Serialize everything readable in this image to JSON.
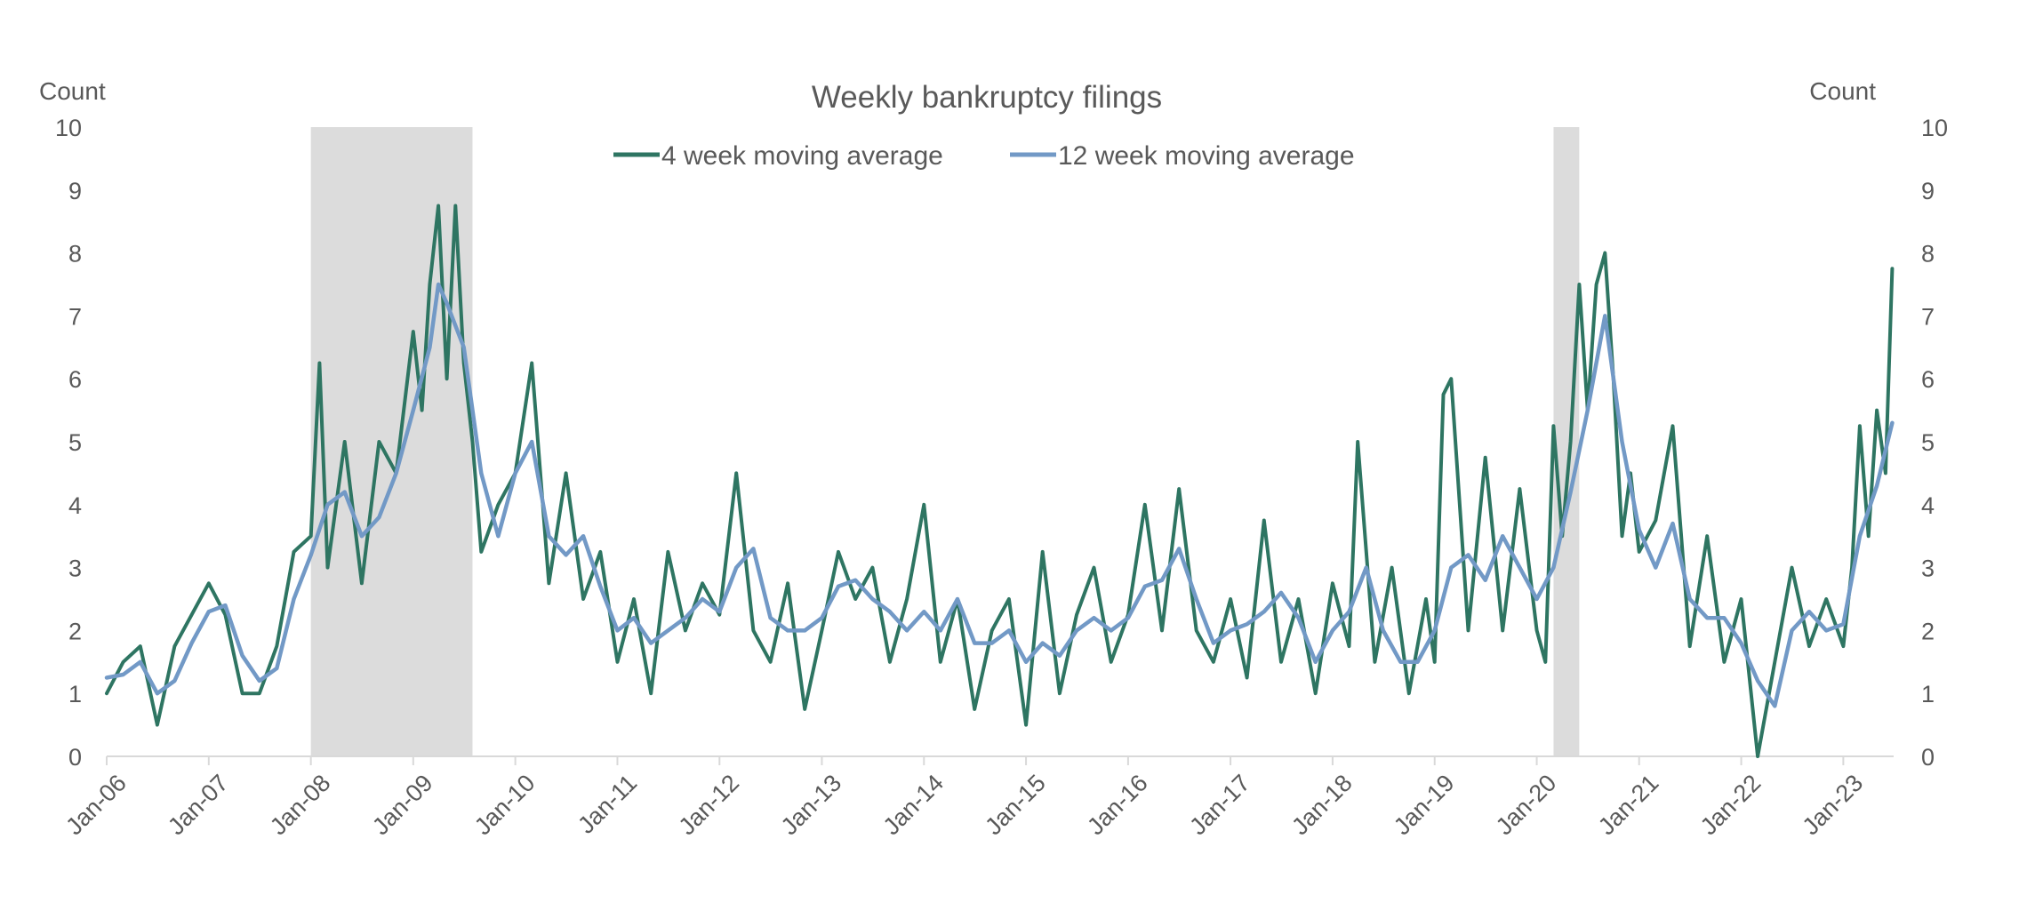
{
  "chart_data": {
    "type": "line",
    "title": "Weekly bankruptcy filings",
    "y_left_label": "Count",
    "y_right_label": "Count",
    "ylim": [
      0,
      10
    ],
    "yticks": [
      "0",
      "1",
      "2",
      "3",
      "4",
      "5",
      "6",
      "7",
      "8",
      "9",
      "10"
    ],
    "x_range": [
      "2006-01-01",
      "2023-06-30"
    ],
    "xticks": [
      {
        "date": "2006-01-01",
        "label": "Jan-06"
      },
      {
        "date": "2007-01-01",
        "label": "Jan-07"
      },
      {
        "date": "2008-01-01",
        "label": "Jan-08"
      },
      {
        "date": "2009-01-01",
        "label": "Jan-09"
      },
      {
        "date": "2010-01-01",
        "label": "Jan-10"
      },
      {
        "date": "2011-01-01",
        "label": "Jan-11"
      },
      {
        "date": "2012-01-01",
        "label": "Jan-12"
      },
      {
        "date": "2013-01-01",
        "label": "Jan-13"
      },
      {
        "date": "2014-01-01",
        "label": "Jan-14"
      },
      {
        "date": "2015-01-01",
        "label": "Jan-15"
      },
      {
        "date": "2016-01-01",
        "label": "Jan-16"
      },
      {
        "date": "2017-01-01",
        "label": "Jan-17"
      },
      {
        "date": "2018-01-01",
        "label": "Jan-18"
      },
      {
        "date": "2019-01-01",
        "label": "Jan-19"
      },
      {
        "date": "2020-01-01",
        "label": "Jan-20"
      },
      {
        "date": "2021-01-01",
        "label": "Jan-21"
      },
      {
        "date": "2022-01-01",
        "label": "Jan-22"
      },
      {
        "date": "2023-01-01",
        "label": "Jan-23"
      }
    ],
    "shaded_periods": [
      {
        "start": "2008-01-01",
        "end": "2009-08-01",
        "color": "#dcdcdc"
      },
      {
        "start": "2020-03-01",
        "end": "2020-06-01",
        "color": "#dcdcdc"
      }
    ],
    "grid": false,
    "legend_position": "top-center",
    "series": [
      {
        "name": "4 week moving average",
        "color": "#2e7562",
        "points": [
          [
            "2006-01-01",
            1.0
          ],
          [
            "2006-03-01",
            1.5
          ],
          [
            "2006-05-01",
            1.75
          ],
          [
            "2006-07-01",
            0.5
          ],
          [
            "2006-09-01",
            1.75
          ],
          [
            "2006-11-01",
            2.25
          ],
          [
            "2007-01-01",
            2.75
          ],
          [
            "2007-03-01",
            2.25
          ],
          [
            "2007-05-01",
            1.0
          ],
          [
            "2007-07-01",
            1.0
          ],
          [
            "2007-09-01",
            1.75
          ],
          [
            "2007-11-01",
            3.25
          ],
          [
            "2008-01-01",
            3.5
          ],
          [
            "2008-02-01",
            6.25
          ],
          [
            "2008-03-01",
            3.0
          ],
          [
            "2008-05-01",
            5.0
          ],
          [
            "2008-07-01",
            2.75
          ],
          [
            "2008-09-01",
            5.0
          ],
          [
            "2008-11-01",
            4.5
          ],
          [
            "2009-01-01",
            6.75
          ],
          [
            "2009-02-01",
            5.5
          ],
          [
            "2009-03-01",
            7.5
          ],
          [
            "2009-04-01",
            8.75
          ],
          [
            "2009-05-01",
            6.0
          ],
          [
            "2009-06-01",
            8.75
          ],
          [
            "2009-07-01",
            6.25
          ],
          [
            "2009-08-01",
            5.0
          ],
          [
            "2009-09-01",
            3.25
          ],
          [
            "2009-11-01",
            4.0
          ],
          [
            "2010-01-01",
            4.5
          ],
          [
            "2010-03-01",
            6.25
          ],
          [
            "2010-05-01",
            2.75
          ],
          [
            "2010-07-01",
            4.5
          ],
          [
            "2010-09-01",
            2.5
          ],
          [
            "2010-11-01",
            3.25
          ],
          [
            "2011-01-01",
            1.5
          ],
          [
            "2011-03-01",
            2.5
          ],
          [
            "2011-05-01",
            1.0
          ],
          [
            "2011-07-01",
            3.25
          ],
          [
            "2011-09-01",
            2.0
          ],
          [
            "2011-11-01",
            2.75
          ],
          [
            "2012-01-01",
            2.25
          ],
          [
            "2012-03-01",
            4.5
          ],
          [
            "2012-05-01",
            2.0
          ],
          [
            "2012-07-01",
            1.5
          ],
          [
            "2012-09-01",
            2.75
          ],
          [
            "2012-11-01",
            0.75
          ],
          [
            "2013-01-01",
            2.0
          ],
          [
            "2013-03-01",
            3.25
          ],
          [
            "2013-05-01",
            2.5
          ],
          [
            "2013-07-01",
            3.0
          ],
          [
            "2013-09-01",
            1.5
          ],
          [
            "2013-11-01",
            2.5
          ],
          [
            "2014-01-01",
            4.0
          ],
          [
            "2014-03-01",
            1.5
          ],
          [
            "2014-05-01",
            2.5
          ],
          [
            "2014-07-01",
            0.75
          ],
          [
            "2014-09-01",
            2.0
          ],
          [
            "2014-11-01",
            2.5
          ],
          [
            "2015-01-01",
            0.5
          ],
          [
            "2015-03-01",
            3.25
          ],
          [
            "2015-05-01",
            1.0
          ],
          [
            "2015-07-01",
            2.25
          ],
          [
            "2015-09-01",
            3.0
          ],
          [
            "2015-11-01",
            1.5
          ],
          [
            "2016-01-01",
            2.25
          ],
          [
            "2016-03-01",
            4.0
          ],
          [
            "2016-05-01",
            2.0
          ],
          [
            "2016-07-01",
            4.25
          ],
          [
            "2016-09-01",
            2.0
          ],
          [
            "2016-11-01",
            1.5
          ],
          [
            "2017-01-01",
            2.5
          ],
          [
            "2017-03-01",
            1.25
          ],
          [
            "2017-05-01",
            3.75
          ],
          [
            "2017-07-01",
            1.5
          ],
          [
            "2017-09-01",
            2.5
          ],
          [
            "2017-11-01",
            1.0
          ],
          [
            "2018-01-01",
            2.75
          ],
          [
            "2018-03-01",
            1.75
          ],
          [
            "2018-04-01",
            5.0
          ],
          [
            "2018-06-01",
            1.5
          ],
          [
            "2018-08-01",
            3.0
          ],
          [
            "2018-10-01",
            1.0
          ],
          [
            "2018-12-01",
            2.5
          ],
          [
            "2019-01-01",
            1.5
          ],
          [
            "2019-02-01",
            5.75
          ],
          [
            "2019-03-01",
            6.0
          ],
          [
            "2019-05-01",
            2.0
          ],
          [
            "2019-07-01",
            4.75
          ],
          [
            "2019-09-01",
            2.0
          ],
          [
            "2019-11-01",
            4.25
          ],
          [
            "2020-01-01",
            2.0
          ],
          [
            "2020-02-01",
            1.5
          ],
          [
            "2020-03-01",
            5.25
          ],
          [
            "2020-04-01",
            3.5
          ],
          [
            "2020-05-01",
            5.0
          ],
          [
            "2020-06-01",
            7.5
          ],
          [
            "2020-07-01",
            5.5
          ],
          [
            "2020-08-01",
            7.5
          ],
          [
            "2020-09-01",
            8.0
          ],
          [
            "2020-10-01",
            6.0
          ],
          [
            "2020-11-01",
            3.5
          ],
          [
            "2020-12-01",
            4.5
          ],
          [
            "2021-01-01",
            3.25
          ],
          [
            "2021-03-01",
            3.75
          ],
          [
            "2021-05-01",
            5.25
          ],
          [
            "2021-07-01",
            1.75
          ],
          [
            "2021-09-01",
            3.5
          ],
          [
            "2021-11-01",
            1.5
          ],
          [
            "2022-01-01",
            2.5
          ],
          [
            "2022-03-01",
            0.0
          ],
          [
            "2022-05-01",
            1.5
          ],
          [
            "2022-07-01",
            3.0
          ],
          [
            "2022-09-01",
            1.75
          ],
          [
            "2022-11-01",
            2.5
          ],
          [
            "2023-01-01",
            1.75
          ],
          [
            "2023-02-01",
            3.0
          ],
          [
            "2023-03-01",
            5.25
          ],
          [
            "2023-04-01",
            3.5
          ],
          [
            "2023-05-01",
            5.5
          ],
          [
            "2023-06-01",
            4.5
          ],
          [
            "2023-06-25",
            7.75
          ]
        ]
      },
      {
        "name": "12 week moving average",
        "color": "#7299c6",
        "points": [
          [
            "2006-01-01",
            1.25
          ],
          [
            "2006-03-01",
            1.3
          ],
          [
            "2006-05-01",
            1.5
          ],
          [
            "2006-07-01",
            1.0
          ],
          [
            "2006-09-01",
            1.2
          ],
          [
            "2006-11-01",
            1.8
          ],
          [
            "2007-01-01",
            2.3
          ],
          [
            "2007-03-01",
            2.4
          ],
          [
            "2007-05-01",
            1.6
          ],
          [
            "2007-07-01",
            1.2
          ],
          [
            "2007-09-01",
            1.4
          ],
          [
            "2007-11-01",
            2.5
          ],
          [
            "2008-01-01",
            3.2
          ],
          [
            "2008-03-01",
            4.0
          ],
          [
            "2008-05-01",
            4.2
          ],
          [
            "2008-07-01",
            3.5
          ],
          [
            "2008-09-01",
            3.8
          ],
          [
            "2008-11-01",
            4.5
          ],
          [
            "2009-01-01",
            5.5
          ],
          [
            "2009-03-01",
            6.5
          ],
          [
            "2009-04-01",
            7.5
          ],
          [
            "2009-05-01",
            7.2
          ],
          [
            "2009-07-01",
            6.5
          ],
          [
            "2009-09-01",
            4.5
          ],
          [
            "2009-11-01",
            3.5
          ],
          [
            "2010-01-01",
            4.5
          ],
          [
            "2010-03-01",
            5.0
          ],
          [
            "2010-05-01",
            3.5
          ],
          [
            "2010-07-01",
            3.2
          ],
          [
            "2010-09-01",
            3.5
          ],
          [
            "2010-11-01",
            2.7
          ],
          [
            "2011-01-01",
            2.0
          ],
          [
            "2011-03-01",
            2.2
          ],
          [
            "2011-05-01",
            1.8
          ],
          [
            "2011-07-01",
            2.0
          ],
          [
            "2011-09-01",
            2.2
          ],
          [
            "2011-11-01",
            2.5
          ],
          [
            "2012-01-01",
            2.3
          ],
          [
            "2012-03-01",
            3.0
          ],
          [
            "2012-05-01",
            3.3
          ],
          [
            "2012-07-01",
            2.2
          ],
          [
            "2012-09-01",
            2.0
          ],
          [
            "2012-11-01",
            2.0
          ],
          [
            "2013-01-01",
            2.2
          ],
          [
            "2013-03-01",
            2.7
          ],
          [
            "2013-05-01",
            2.8
          ],
          [
            "2013-07-01",
            2.5
          ],
          [
            "2013-09-01",
            2.3
          ],
          [
            "2013-11-01",
            2.0
          ],
          [
            "2014-01-01",
            2.3
          ],
          [
            "2014-03-01",
            2.0
          ],
          [
            "2014-05-01",
            2.5
          ],
          [
            "2014-07-01",
            1.8
          ],
          [
            "2014-09-01",
            1.8
          ],
          [
            "2014-11-01",
            2.0
          ],
          [
            "2015-01-01",
            1.5
          ],
          [
            "2015-03-01",
            1.8
          ],
          [
            "2015-05-01",
            1.6
          ],
          [
            "2015-07-01",
            2.0
          ],
          [
            "2015-09-01",
            2.2
          ],
          [
            "2015-11-01",
            2.0
          ],
          [
            "2016-01-01",
            2.2
          ],
          [
            "2016-03-01",
            2.7
          ],
          [
            "2016-05-01",
            2.8
          ],
          [
            "2016-07-01",
            3.3
          ],
          [
            "2016-09-01",
            2.5
          ],
          [
            "2016-11-01",
            1.8
          ],
          [
            "2017-01-01",
            2.0
          ],
          [
            "2017-03-01",
            2.1
          ],
          [
            "2017-05-01",
            2.3
          ],
          [
            "2017-07-01",
            2.6
          ],
          [
            "2017-09-01",
            2.2
          ],
          [
            "2017-11-01",
            1.5
          ],
          [
            "2018-01-01",
            2.0
          ],
          [
            "2018-03-01",
            2.3
          ],
          [
            "2018-05-01",
            3.0
          ],
          [
            "2018-07-01",
            2.0
          ],
          [
            "2018-09-01",
            1.5
          ],
          [
            "2018-11-01",
            1.5
          ],
          [
            "2019-01-01",
            2.0
          ],
          [
            "2019-03-01",
            3.0
          ],
          [
            "2019-05-01",
            3.2
          ],
          [
            "2019-07-01",
            2.8
          ],
          [
            "2019-09-01",
            3.5
          ],
          [
            "2019-11-01",
            3.0
          ],
          [
            "2020-01-01",
            2.5
          ],
          [
            "2020-03-01",
            3.0
          ],
          [
            "2020-05-01",
            4.2
          ],
          [
            "2020-07-01",
            5.5
          ],
          [
            "2020-09-01",
            7.0
          ],
          [
            "2020-11-01",
            5.0
          ],
          [
            "2021-01-01",
            3.6
          ],
          [
            "2021-03-01",
            3.0
          ],
          [
            "2021-05-01",
            3.7
          ],
          [
            "2021-07-01",
            2.5
          ],
          [
            "2021-09-01",
            2.2
          ],
          [
            "2021-11-01",
            2.2
          ],
          [
            "2022-01-01",
            1.8
          ],
          [
            "2022-03-01",
            1.2
          ],
          [
            "2022-05-01",
            0.8
          ],
          [
            "2022-07-01",
            2.0
          ],
          [
            "2022-09-01",
            2.3
          ],
          [
            "2022-11-01",
            2.0
          ],
          [
            "2023-01-01",
            2.1
          ],
          [
            "2023-03-01",
            3.5
          ],
          [
            "2023-05-01",
            4.3
          ],
          [
            "2023-06-25",
            5.3
          ]
        ]
      }
    ]
  }
}
